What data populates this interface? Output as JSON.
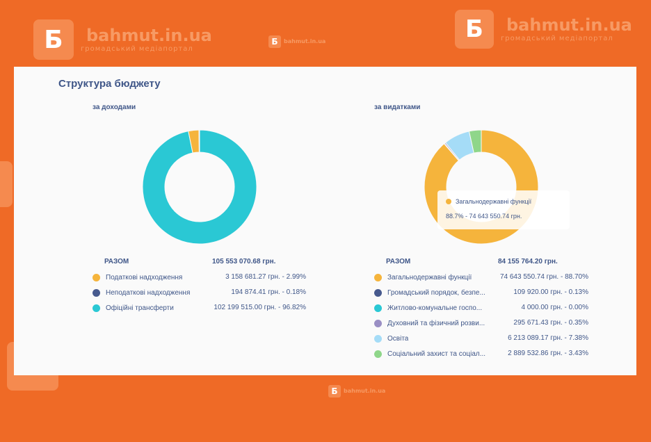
{
  "watermark": {
    "brand": "bahmut.in.ua",
    "tagline": "громадський медіапортал",
    "logo_letter": "Б"
  },
  "page": {
    "title": "Структура бюджету"
  },
  "income": {
    "subtitle": "за доходами",
    "total_label": "РАЗОМ",
    "total_value": "105 553 070.68 грн.",
    "items": [
      {
        "name": "Податкові надходження",
        "value": "3 158 681.27 грн. -   2.99%",
        "color": "#f5b43c"
      },
      {
        "name": "Неподаткові надходження",
        "value": "194 874.41 грн. -   0.18%",
        "color": "#475a8e"
      },
      {
        "name": "Офіційні трансферти",
        "value": "102 199 515.00 грн. - 96.82%",
        "color": "#2ac8d4"
      }
    ]
  },
  "expenses": {
    "subtitle": "за видатками",
    "total_label": "РАЗОМ",
    "total_value": "84 155 764.20 грн.",
    "items": [
      {
        "name": "Загальнодержавні функції",
        "value": "74 643 550.74 грн. - 88.70%",
        "color": "#f5b43c"
      },
      {
        "name": "Громадський порядок, безпе...",
        "value": "109 920.00 грн. -   0.13%",
        "color": "#475a8e"
      },
      {
        "name": "Житлово-комунальне госпо...",
        "value": "4 000.00 грн. -   0.00%",
        "color": "#2ac8d4"
      },
      {
        "name": "Духовний та фізичний розви...",
        "value": "295 671.43 грн. -   0.35%",
        "color": "#9a8fc4"
      },
      {
        "name": "Освіта",
        "value": "6 213 089.17 грн. -   7.38%",
        "color": "#a5dcf7"
      },
      {
        "name": "Соціальний захист та соціал...",
        "value": "2 889 532.86 грн. -   3.43%",
        "color": "#8fd68a"
      }
    ],
    "tooltip": {
      "label": "Загальнодержавні функції",
      "value": "88.7% - 74 643 550.74 грн.",
      "color": "#f5b43c"
    }
  },
  "chart_data": [
    {
      "type": "pie",
      "title": "за доходами",
      "categories": [
        "Податкові надходження",
        "Неподаткові надходження",
        "Офіційні трансферти"
      ],
      "values": [
        2.99,
        0.18,
        96.82
      ],
      "amounts": [
        3158681.27,
        194874.41,
        102199515.0
      ],
      "colors": [
        "#f5b43c",
        "#475a8e",
        "#2ac8d4"
      ]
    },
    {
      "type": "pie",
      "title": "за видатками",
      "categories": [
        "Загальнодержавні функції",
        "Громадський порядок, безпе...",
        "Житлово-комунальне госпо...",
        "Духовний та фізичний розви...",
        "Освіта",
        "Соціальний захист та соціал..."
      ],
      "values": [
        88.7,
        0.13,
        0.0,
        0.35,
        7.38,
        3.43
      ],
      "amounts": [
        74643550.74,
        109920.0,
        4000.0,
        295671.43,
        6213089.17,
        2889532.86
      ],
      "colors": [
        "#f5b43c",
        "#475a8e",
        "#2ac8d4",
        "#9a8fc4",
        "#a5dcf7",
        "#8fd68a"
      ]
    }
  ]
}
